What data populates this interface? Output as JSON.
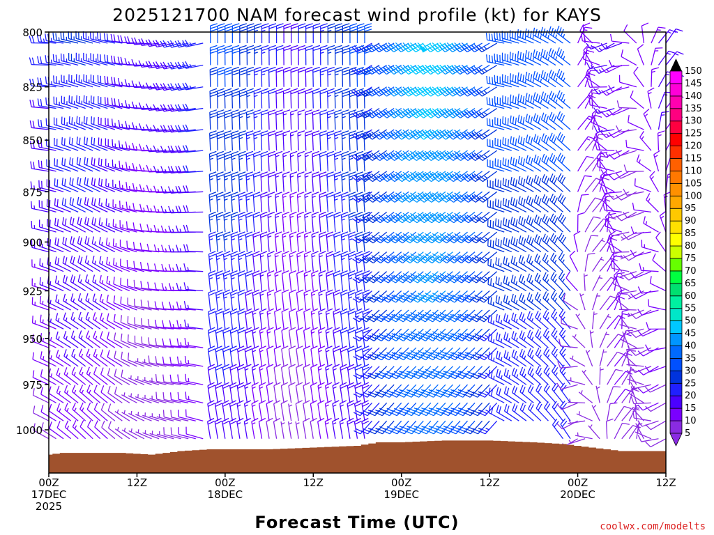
{
  "chart_data": {
    "type": "wind-barb time-height cross section",
    "title": "2025121700 NAM forecast wind profile (kt) for KAYS",
    "xlabel": "Forecast Time (UTC)",
    "ylabel": "",
    "credit": "coolwx.com/modelts",
    "y_axis": {
      "ticks": [
        800,
        825,
        850,
        875,
        900,
        925,
        950,
        975,
        1000
      ],
      "ylim": [
        800,
        1020
      ],
      "inverted": true
    },
    "x_axis": {
      "unit": "hours since 2025-12-17 00Z",
      "xlim": [
        0,
        84
      ],
      "ticks": [
        {
          "hour": 0,
          "lines": [
            "00Z",
            "17DEC",
            "2025"
          ]
        },
        {
          "hour": 12,
          "lines": [
            "12Z"
          ]
        },
        {
          "hour": 24,
          "lines": [
            "00Z",
            "18DEC"
          ]
        },
        {
          "hour": 36,
          "lines": [
            "12Z"
          ]
        },
        {
          "hour": 48,
          "lines": [
            "00Z",
            "19DEC"
          ]
        },
        {
          "hour": 60,
          "lines": [
            "12Z"
          ]
        },
        {
          "hour": 72,
          "lines": [
            "00Z",
            "20DEC"
          ]
        },
        {
          "hour": 84,
          "lines": [
            "12Z"
          ]
        }
      ]
    },
    "barb_levels_hpa": [
      805,
      815,
      825,
      835,
      845,
      855,
      865,
      875,
      885,
      895,
      905,
      915,
      925,
      935,
      945,
      955,
      965,
      975,
      985,
      995,
      1005,
      1015
    ],
    "barb_hours_step": 1,
    "surface_pressure": [
      {
        "hour": 0,
        "hpa": 1014
      },
      {
        "hour": 2,
        "hpa": 1013
      },
      {
        "hour": 7,
        "hpa": 1013
      },
      {
        "hour": 10,
        "hpa": 1013
      },
      {
        "hour": 14,
        "hpa": 1014
      },
      {
        "hour": 18,
        "hpa": 1012
      },
      {
        "hour": 22,
        "hpa": 1011
      },
      {
        "hour": 30,
        "hpa": 1011
      },
      {
        "hour": 36,
        "hpa": 1010
      },
      {
        "hour": 42,
        "hpa": 1009
      },
      {
        "hour": 45,
        "hpa": 1007
      },
      {
        "hour": 48,
        "hpa": 1007
      },
      {
        "hour": 54,
        "hpa": 1006
      },
      {
        "hour": 60,
        "hpa": 1006
      },
      {
        "hour": 66,
        "hpa": 1007
      },
      {
        "hour": 70,
        "hpa": 1008
      },
      {
        "hour": 74,
        "hpa": 1010
      },
      {
        "hour": 78,
        "hpa": 1012
      },
      {
        "hour": 84,
        "hpa": 1012
      }
    ],
    "surface_color": "#a0522d",
    "wind_regimes": [
      {
        "period": "hours 0-22",
        "description": "light westerly/northwesterly, 5-25 kt"
      },
      {
        "period": "hours 22-44",
        "description": "northerly to northwesterly, 10-30 kt"
      },
      {
        "period": "hours 44-62",
        "description": "strong southwesterly jet, 30-50 kt, strongest aloft"
      },
      {
        "period": "hours 62-72",
        "description": "veering northwesterly, 20-35 kt"
      },
      {
        "period": "hours 72-84",
        "description": "light variable, 5-15 kt"
      }
    ],
    "legend": {
      "title": "kt",
      "placement": "right",
      "levels": [
        5,
        10,
        15,
        20,
        25,
        30,
        35,
        40,
        45,
        50,
        55,
        60,
        65,
        70,
        75,
        80,
        85,
        90,
        95,
        100,
        105,
        110,
        115,
        120,
        125,
        130,
        135,
        140,
        145,
        150
      ],
      "colors": [
        "#8a2be2",
        "#7a00ff",
        "#4b00ff",
        "#2020ff",
        "#0033dd",
        "#0050ff",
        "#006aff",
        "#0096ff",
        "#00c8ff",
        "#00e6c8",
        "#00f0a0",
        "#00e070",
        "#00ff40",
        "#66ff00",
        "#ccff00",
        "#ffff00",
        "#ffe000",
        "#ffc800",
        "#ffa800",
        "#ff9000",
        "#ff7800",
        "#ff6000",
        "#ff3000",
        "#ff0000",
        "#ff0040",
        "#ff0080",
        "#ff00b0",
        "#ff00d8",
        "#ff00ff"
      ]
    }
  }
}
